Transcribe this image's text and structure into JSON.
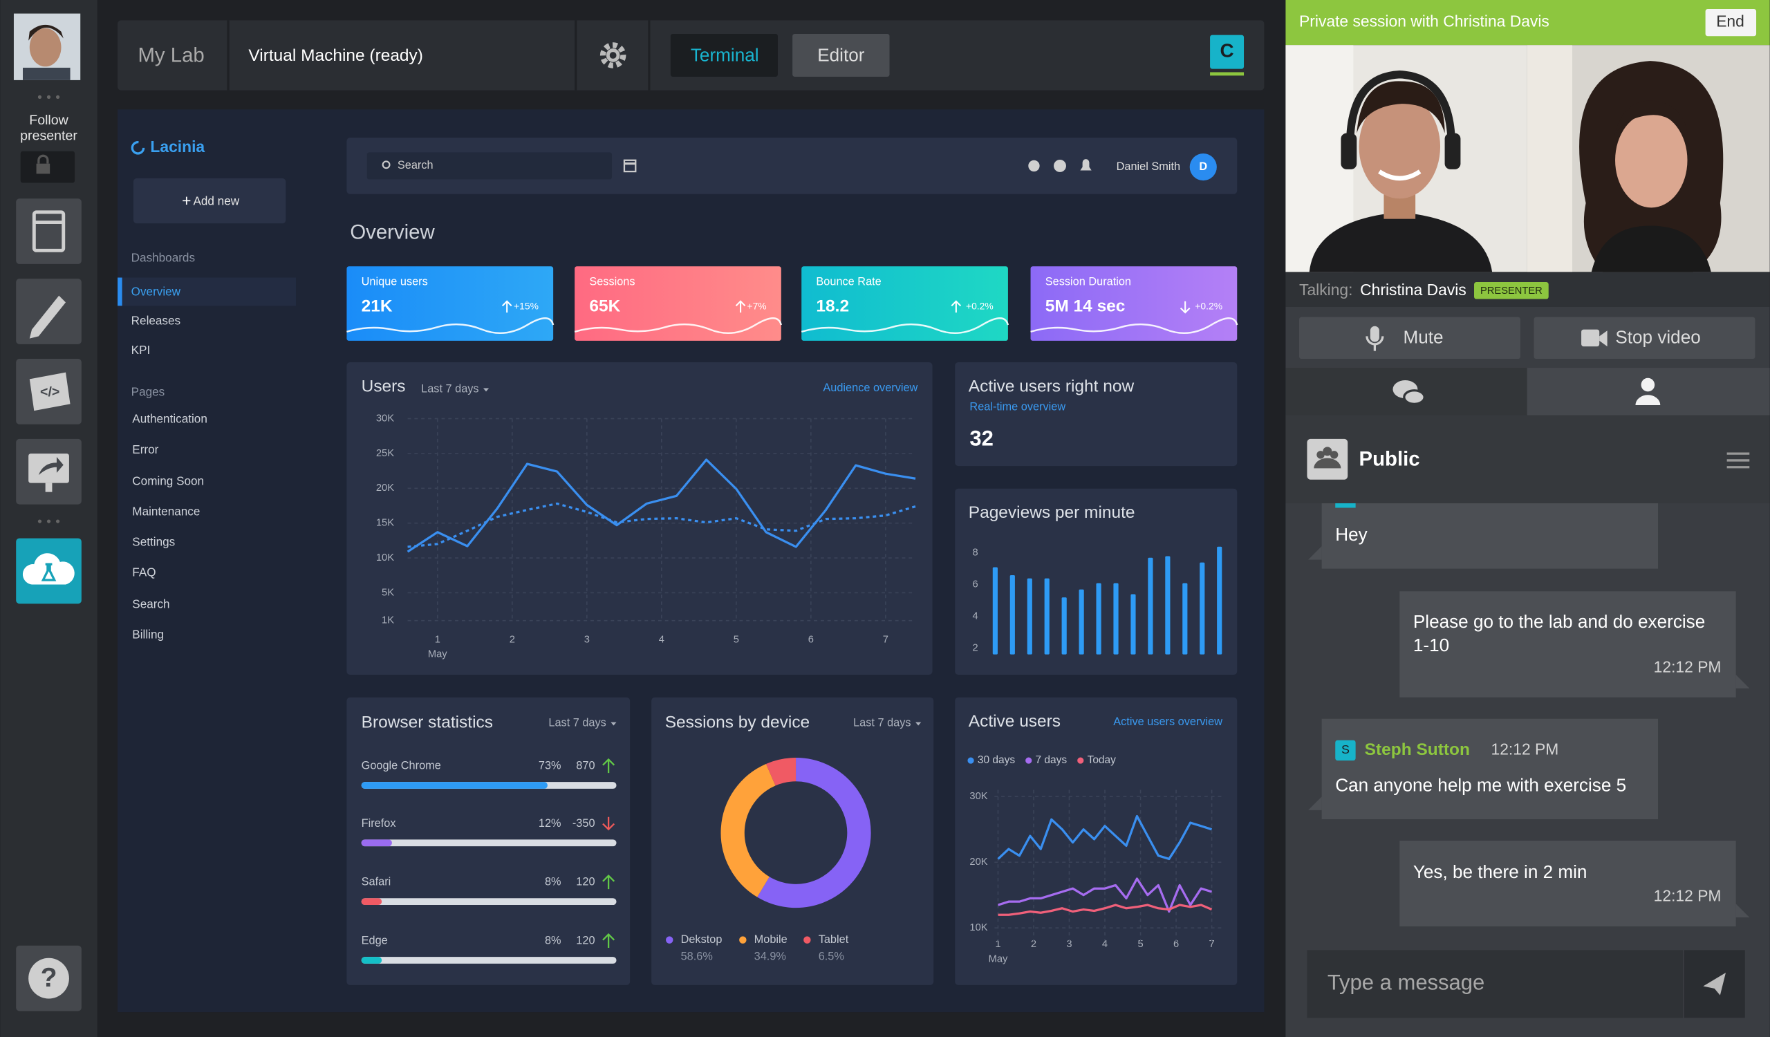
{
  "sidebar": {
    "follow": [
      "Follow",
      "presenter"
    ]
  },
  "topbar": {
    "lab": "My Lab",
    "vm": "Virtual Machine (ready)",
    "tabs": [
      "Terminal",
      "Editor"
    ],
    "badge": "C"
  },
  "dashboard": {
    "brand": "Lacinia",
    "add_new": "Add new",
    "nav": [
      {
        "title": "Dashboards",
        "items": [
          "Overview",
          "Releases",
          "KPI"
        ]
      },
      {
        "title": "Pages",
        "items": [
          "Authentication",
          "Error",
          "Coming Soon",
          "Maintenance",
          "Settings",
          "FAQ",
          "Search",
          "Billing"
        ]
      }
    ],
    "search": "Search",
    "user": "Daniel Smith",
    "user_initial": "D",
    "heading": "Overview",
    "kpis": [
      {
        "label": "Unique users",
        "value": "21K",
        "change": "+15%",
        "trend": "up"
      },
      {
        "label": "Sessions",
        "value": "65K",
        "change": "+7%",
        "trend": "up"
      },
      {
        "label": "Bounce Rate",
        "value": "18.2",
        "change": "+0.2%",
        "trend": "up"
      },
      {
        "label": "Session Duration",
        "value": "5M 14 sec",
        "change": "+0.2%",
        "trend": "down"
      }
    ],
    "users_chart": {
      "type": "line",
      "title": "Users",
      "range": "Last 7 days",
      "link": "Audience overview",
      "x": [
        0.6,
        1.0,
        1.4,
        1.8,
        2.2,
        2.6,
        3.0,
        3.4,
        3.8,
        4.2,
        4.6,
        5.0,
        5.4,
        5.8,
        6.2,
        6.6,
        7.0,
        7.4
      ],
      "xlim": [
        0.6,
        7.4
      ],
      "xticks": [
        1,
        2,
        3,
        4,
        5,
        6,
        7
      ],
      "xsubtitle": "May",
      "ylim": [
        1000,
        30000
      ],
      "yticks": [
        {
          "value": 1000,
          "label": "1K"
        },
        {
          "value": 5000,
          "label": "5K"
        },
        {
          "value": 10000,
          "label": "10K"
        },
        {
          "value": 15000,
          "label": "15K"
        },
        {
          "value": 20000,
          "label": "20K"
        },
        {
          "value": 25000,
          "label": "25K"
        },
        {
          "value": 30000,
          "label": "30K"
        }
      ],
      "grid": true,
      "series": [
        {
          "color": "#3a8ff0",
          "dash": false,
          "values": [
            10900,
            13700,
            11700,
            17100,
            23500,
            22400,
            17600,
            14700,
            17800,
            18900,
            24100,
            19900,
            13700,
            11600,
            16900,
            23300,
            22100,
            21400
          ]
        },
        {
          "color": "#3a8ff0",
          "dash": true,
          "values": [
            11600,
            12000,
            13900,
            15900,
            16900,
            17800,
            16600,
            15100,
            15600,
            15700,
            15100,
            15700,
            14100,
            13900,
            15600,
            15700,
            16100,
            17400
          ]
        }
      ]
    },
    "active_now": {
      "title": "Active users right now",
      "link": "Real-time overview",
      "value": 32
    },
    "pageviews": {
      "type": "bar",
      "title": "Pageviews per minute",
      "categories": [
        null,
        null,
        null,
        null,
        null,
        null,
        null,
        null,
        null,
        null,
        null,
        null,
        null,
        null
      ],
      "values": [
        7.1,
        6.6,
        6.4,
        6.4,
        5.2,
        5.7,
        6.1,
        6.1,
        5.4,
        7.7,
        7.8,
        6.1,
        7.4,
        8.4
      ],
      "ylim": [
        1.6,
        9
      ],
      "yticks": [
        2,
        4,
        6,
        8
      ],
      "color": "#2e9bf5"
    },
    "browsers": {
      "type": "progress",
      "title": "Browser statistics",
      "range": "Last 7 days",
      "xlim": [
        0,
        100
      ],
      "items": [
        {
          "name": "Google Chrome",
          "value": 73,
          "value_label": "73%",
          "change": 870,
          "trend": "up",
          "color": "#2e9bf5"
        },
        {
          "name": "Firefox",
          "value": 12,
          "value_label": "12%",
          "change": -350,
          "trend": "down",
          "color": "#9a6cf0"
        },
        {
          "name": "Safari",
          "value": 8,
          "value_label": "8%",
          "change": 120,
          "trend": "up",
          "color": "#f05a64"
        },
        {
          "name": "Edge",
          "value": 8,
          "value_label": "8%",
          "change": 120,
          "trend": "up",
          "color": "#14c0c8"
        }
      ]
    },
    "devices": {
      "type": "pie",
      "title": "Sessions by device",
      "range": "Last 7 days",
      "categories": [
        "Dekstop",
        "Mobile",
        "Tablet"
      ],
      "values": [
        58.6,
        34.9,
        6.5
      ],
      "value_labels": [
        "58.6%",
        "34.9%",
        "6.5%"
      ],
      "colors": [
        "#8663f5",
        "#ffa23a",
        "#f05a64"
      ]
    },
    "active_users": {
      "type": "line",
      "title": "Active users",
      "link": "Active users overview",
      "legend": "top-left",
      "x": [
        1,
        1.3,
        1.6,
        1.9,
        2.2,
        2.5,
        2.8,
        3.1,
        3.4,
        3.7,
        4,
        4.3,
        4.6,
        4.9,
        5.2,
        5.5,
        5.8,
        6.1,
        6.4,
        6.7,
        7
      ],
      "xlim": [
        0.9,
        7.3
      ],
      "xticks": [
        1,
        2,
        3,
        4,
        5,
        6,
        7
      ],
      "xsubtitle": "May",
      "ylim": [
        8000,
        31000
      ],
      "yticks": [
        {
          "value": 10000,
          "label": "10K"
        },
        {
          "value": 20000,
          "label": "20K"
        },
        {
          "value": 30000,
          "label": "30K"
        }
      ],
      "grid": true,
      "series": [
        {
          "name": "30 days",
          "color": "#3a8ff0",
          "values": [
            20500,
            22000,
            21000,
            24000,
            22000,
            26500,
            25000,
            23000,
            25000,
            23500,
            25500,
            24000,
            22500,
            27000,
            24000,
            21000,
            20500,
            23000,
            26000,
            25500,
            25000
          ]
        },
        {
          "name": "7 days",
          "color": "#a66cf0",
          "values": [
            13500,
            14000,
            14000,
            14500,
            14500,
            15000,
            15500,
            16000,
            15000,
            16000,
            16000,
            16500,
            14500,
            17500,
            15000,
            16500,
            12500,
            16500,
            13500,
            16000,
            15500
          ]
        },
        {
          "name": "Today",
          "color": "#f0607a",
          "values": [
            12000,
            12000,
            12200,
            12500,
            12300,
            12600,
            13000,
            12500,
            12800,
            12600,
            13000,
            13500,
            13000,
            13200,
            13500,
            13000,
            12800,
            13500,
            13200,
            13500,
            12800
          ]
        }
      ]
    }
  },
  "chat": {
    "session": "Private session with Christina Davis",
    "end": "End",
    "talking_label": "Talking:",
    "talking_name": "Christina Davis",
    "talking_role": "PRESENTER",
    "mute": "Mute",
    "stop_video": "Stop video",
    "channel": "Public",
    "messages": [
      {
        "side": "left",
        "lines": [
          "Hey"
        ]
      },
      {
        "side": "right",
        "lines": [
          "Please go to the lab and do exercise",
          "1-10"
        ],
        "time": "12:12 PM"
      },
      {
        "side": "left",
        "author": "Steph Sutton",
        "initial": "S",
        "time": "12:12 PM",
        "lines": [
          "Can anyone help me with exercise 5"
        ]
      },
      {
        "side": "right",
        "lines": [
          "Yes, be there in 2 min"
        ],
        "time": "12:12 PM"
      }
    ],
    "placeholder": "Type a message"
  }
}
